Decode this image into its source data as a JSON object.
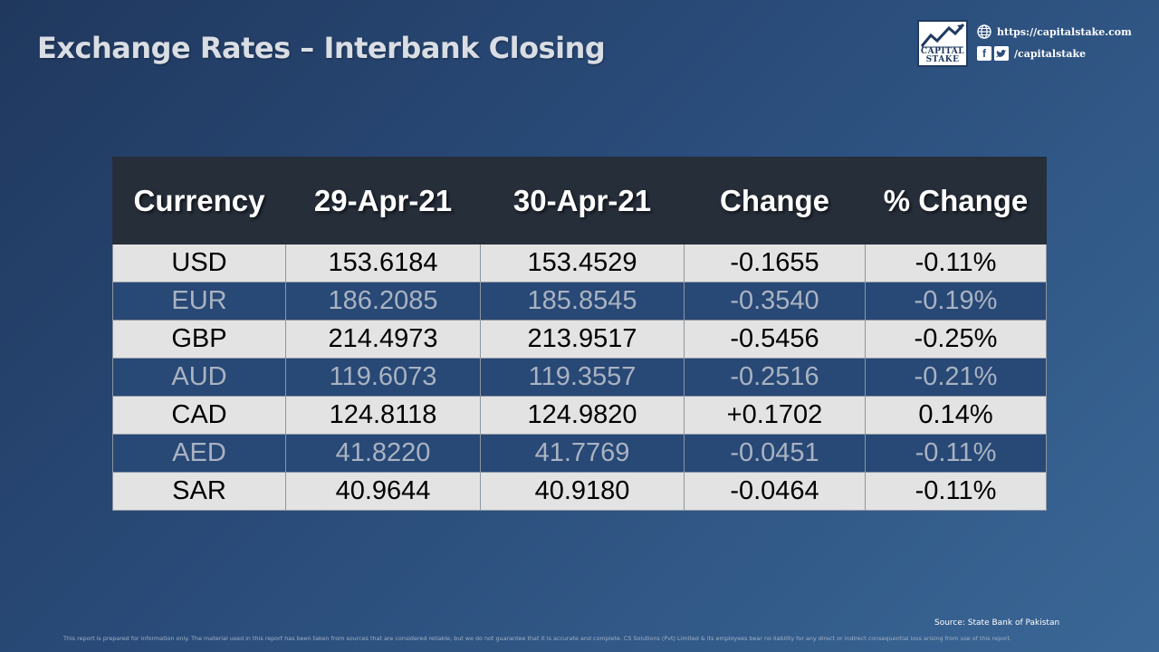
{
  "title": "Exchange Rates – Interbank Closing",
  "brand": {
    "logo_text_1": "CAPITAL",
    "logo_text_2": "STAKE",
    "website": "https://capitalstake.com",
    "social_handle": "/capitalstake",
    "accent_color": "#1f3a60"
  },
  "table": {
    "headers": [
      "Currency",
      "29-Apr-21",
      "30-Apr-21",
      "Change",
      "% Change"
    ],
    "rows": [
      [
        "USD",
        "153.6184",
        "153.4529",
        "-0.1655",
        "-0.11%"
      ],
      [
        "EUR",
        "186.2085",
        "185.8545",
        "-0.3540",
        "-0.19%"
      ],
      [
        "GBP",
        "214.4973",
        "213.9517",
        "-0.5456",
        "-0.25%"
      ],
      [
        "AUD",
        "119.6073",
        "119.3557",
        "-0.2516",
        "-0.21%"
      ],
      [
        "CAD",
        "124.8118",
        "124.9820",
        "+0.1702",
        "0.14%"
      ],
      [
        "AED",
        "41.8220",
        "41.7769",
        "-0.0451",
        "-0.11%"
      ],
      [
        "SAR",
        "40.9644",
        "40.9180",
        "-0.0464",
        "-0.11%"
      ]
    ]
  },
  "footer": {
    "source": "Source: State Bank of Pakistan",
    "disclaimer": "This report is prepared for information only. The material used in this report has been taken from sources that are considered reliable, but we do not guarantee that it is accurate and complete. CS Solutions (Pvt) Limited & its employees bear no liability for any direct or indirect consequential loss arising from use of this report."
  }
}
